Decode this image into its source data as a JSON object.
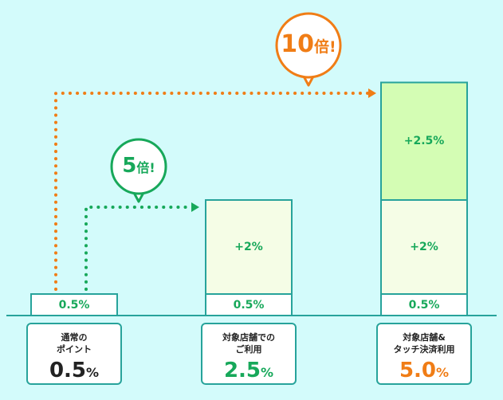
{
  "chart_data": {
    "type": "bar",
    "stacked": true,
    "categories": [
      "通常の\nポイント",
      "対象店舗での\nご利用",
      "対象店舗&\nタッチ決済利用"
    ],
    "series": [
      {
        "values": [
          0.5,
          0.5,
          0.5
        ],
        "labels": [
          "0.5%",
          "0.5%",
          "0.5%"
        ]
      },
      {
        "values": [
          0,
          2,
          2
        ],
        "labels": [
          "",
          "+2%",
          "+2%"
        ]
      },
      {
        "values": [
          0,
          0,
          2.5
        ],
        "labels": [
          "",
          "",
          "+2.5%"
        ]
      }
    ],
    "totals": [
      {
        "number": "0.5",
        "unit": "%"
      },
      {
        "number": "2.5",
        "unit": "%"
      },
      {
        "number": "5.0",
        "unit": "%"
      }
    ],
    "annotations": [
      {
        "number": "5",
        "suffix": "倍!",
        "from": 0,
        "to": 1
      },
      {
        "number": "10",
        "suffix": "倍!",
        "from": 0,
        "to": 2
      }
    ],
    "ylim": [
      0,
      5.0
    ],
    "grid": false
  },
  "colors": {
    "background": "#d3fbfb",
    "bar_border": "#27a39b",
    "base_fill": "#ffffff",
    "plus2_fill": "#f5fde6",
    "plus25_fill": "#d4fdb4",
    "green": "#17a85a",
    "orange": "#f07d16",
    "dark": "#222222"
  }
}
